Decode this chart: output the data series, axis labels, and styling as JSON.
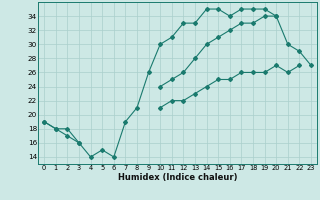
{
  "title": "",
  "xlabel": "Humidex (Indice chaleur)",
  "ylabel": "",
  "bg_color": "#cde8e5",
  "line_color": "#1a7a6e",
  "grid_color": "#aacfcc",
  "x": [
    0,
    1,
    2,
    3,
    4,
    5,
    6,
    7,
    8,
    9,
    10,
    11,
    12,
    13,
    14,
    15,
    16,
    17,
    18,
    19,
    20,
    21,
    22,
    23
  ],
  "line1": [
    19,
    18,
    18,
    16,
    14,
    15,
    14,
    19,
    21,
    26,
    30,
    31,
    33,
    33,
    35,
    35,
    34,
    35,
    35,
    35,
    34,
    30,
    29,
    27
  ],
  "line2": [
    19,
    18,
    17,
    16,
    null,
    null,
    null,
    null,
    null,
    null,
    24,
    25,
    26,
    28,
    30,
    31,
    32,
    33,
    33,
    34,
    34,
    null,
    null,
    null
  ],
  "line3": [
    null,
    null,
    null,
    null,
    null,
    null,
    null,
    null,
    null,
    null,
    21,
    22,
    22,
    23,
    24,
    25,
    25,
    26,
    26,
    26,
    27,
    26,
    27,
    null
  ],
  "ylim": [
    13,
    36
  ],
  "xlim": [
    -0.5,
    23.5
  ],
  "yticks": [
    14,
    16,
    18,
    20,
    22,
    24,
    26,
    28,
    30,
    32,
    34
  ],
  "xticks": [
    0,
    1,
    2,
    3,
    4,
    5,
    6,
    7,
    8,
    9,
    10,
    11,
    12,
    13,
    14,
    15,
    16,
    17,
    18,
    19,
    20,
    21,
    22,
    23
  ]
}
